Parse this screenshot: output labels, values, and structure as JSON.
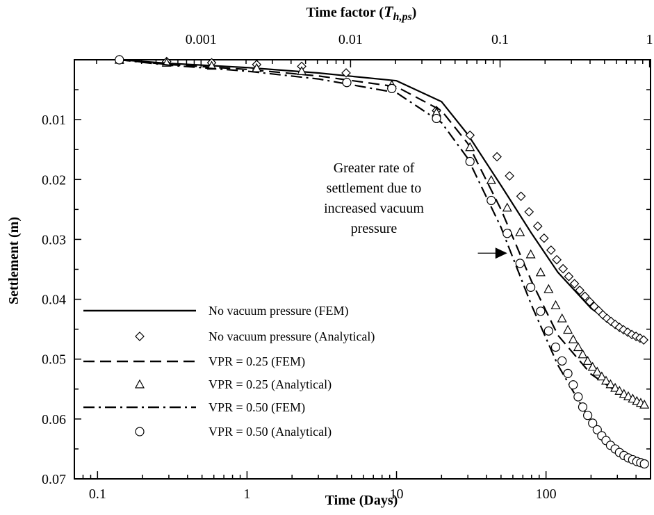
{
  "chart_data": {
    "type": "scatter",
    "xlabel": "Time (Days)",
    "x2label_prefix": "Time factor (",
    "x2label_var": "T",
    "x2label_sub": "h,ps",
    "x2label_suffix": ")",
    "ylabel": "Settlement (m)",
    "x_scale": "log",
    "xlim": [
      0.07,
      500
    ],
    "ylim": [
      0,
      0.07
    ],
    "y_inverted": true,
    "x_ticks": [
      0.1,
      1,
      10,
      100
    ],
    "x_tick_labels": [
      "0.1",
      "1",
      "10",
      "100"
    ],
    "x2_ticks": [
      0.001,
      0.01,
      0.1,
      1
    ],
    "x2_tick_labels": [
      "0.001",
      "0.01",
      "0.1",
      "1"
    ],
    "x2_per_day": 0.00203,
    "y_ticks": [
      0.01,
      0.02,
      0.03,
      0.04,
      0.05,
      0.06,
      0.07
    ],
    "y_tick_labels": [
      "0.01",
      "0.02",
      "0.03",
      "0.04",
      "0.05",
      "0.06",
      "0.07"
    ],
    "grid": false,
    "legend_placement": "bottom-left",
    "annotation": {
      "lines": [
        "Greater rate of",
        "settlement due to",
        "increased vacuum",
        "pressure"
      ],
      "arrow_from": [
        35,
        0.0323
      ],
      "arrow_to": [
        55,
        0.0323
      ]
    },
    "series": [
      {
        "name": "No vacuum pressure (FEM)",
        "style": "solid-line",
        "x": [
          0.14,
          0.3,
          1,
          3,
          10,
          20,
          30,
          50,
          80,
          120,
          200,
          300,
          450
        ],
        "y": [
          0.0,
          0.0006,
          0.0013,
          0.0022,
          0.0035,
          0.007,
          0.0125,
          0.021,
          0.029,
          0.0355,
          0.0415,
          0.0447,
          0.0468
        ]
      },
      {
        "name": "No vacuum pressure (Analytical)",
        "style": "diamond",
        "x": [
          0.14,
          0.29,
          0.58,
          1.16,
          2.32,
          4.6,
          9.3,
          18.5,
          31,
          47,
          57,
          68,
          77,
          88,
          97,
          108,
          118,
          130,
          142,
          155,
          168,
          182,
          196,
          210,
          225,
          240,
          256,
          272,
          290,
          310,
          330,
          352,
          375,
          400,
          425,
          450
        ],
        "y": [
          0.0,
          0.0003,
          0.0005,
          0.0008,
          0.0011,
          0.0022,
          0.0045,
          0.0085,
          0.0126,
          0.0162,
          0.0194,
          0.0228,
          0.0254,
          0.0278,
          0.0298,
          0.0318,
          0.0334,
          0.0349,
          0.0362,
          0.0374,
          0.0385,
          0.0395,
          0.0404,
          0.0412,
          0.0419,
          0.0426,
          0.0432,
          0.0437,
          0.0442,
          0.0447,
          0.0451,
          0.0455,
          0.0459,
          0.0462,
          0.0465,
          0.0468
        ]
      },
      {
        "name": "VPR = 0.25 (FEM)",
        "style": "dashed-line",
        "x": [
          0.14,
          0.3,
          1,
          3,
          10,
          20,
          30,
          50,
          80,
          120,
          200,
          300,
          450
        ],
        "y": [
          0.0,
          0.0008,
          0.0016,
          0.0027,
          0.0045,
          0.0085,
          0.014,
          0.025,
          0.037,
          0.046,
          0.0525,
          0.0555,
          0.0575
        ]
      },
      {
        "name": "VPR = 0.25 (Analytical)",
        "style": "triangle",
        "x": [
          0.14,
          0.29,
          0.58,
          1.16,
          2.32,
          9.3,
          18.5,
          31,
          43,
          55,
          67,
          79,
          92,
          104,
          116,
          128,
          140,
          152,
          164,
          176,
          190,
          205,
          220,
          236,
          252,
          270,
          290,
          310,
          332,
          355,
          380,
          405,
          430,
          455
        ],
        "y": [
          0.0,
          0.0005,
          0.001,
          0.0014,
          0.0019,
          0.0042,
          0.0088,
          0.0146,
          0.0201,
          0.0247,
          0.0288,
          0.0325,
          0.0355,
          0.0383,
          0.041,
          0.0432,
          0.0451,
          0.0467,
          0.048,
          0.0492,
          0.0503,
          0.0513,
          0.0521,
          0.0529,
          0.0536,
          0.0542,
          0.0548,
          0.0553,
          0.0558,
          0.0562,
          0.0566,
          0.057,
          0.0573,
          0.0576
        ]
      },
      {
        "name": "VPR = 0.50 (FEM)",
        "style": "dashdot-line",
        "x": [
          0.14,
          0.3,
          1,
          3,
          10,
          20,
          30,
          50,
          80,
          120,
          200,
          300,
          450
        ],
        "y": [
          0.0,
          0.0009,
          0.0019,
          0.0032,
          0.0055,
          0.0105,
          0.0165,
          0.028,
          0.041,
          0.051,
          0.0605,
          0.065,
          0.0675
        ]
      },
      {
        "name": "VPR = 0.50 (Analytical)",
        "style": "circle",
        "x": [
          0.14,
          4.65,
          9.3,
          18.5,
          31,
          43,
          55,
          67,
          79,
          92,
          104,
          116,
          128,
          140,
          152,
          164,
          176,
          190,
          205,
          220,
          236,
          252,
          270,
          290,
          310,
          332,
          355,
          380,
          405,
          430,
          455
        ],
        "y": [
          0.0,
          0.0038,
          0.0048,
          0.0098,
          0.017,
          0.0235,
          0.029,
          0.034,
          0.038,
          0.042,
          0.0453,
          0.048,
          0.0503,
          0.0524,
          0.0543,
          0.0563,
          0.058,
          0.0594,
          0.0607,
          0.0618,
          0.0628,
          0.0636,
          0.0644,
          0.065,
          0.0656,
          0.0661,
          0.0665,
          0.0668,
          0.0671,
          0.0673,
          0.0675
        ]
      }
    ]
  }
}
